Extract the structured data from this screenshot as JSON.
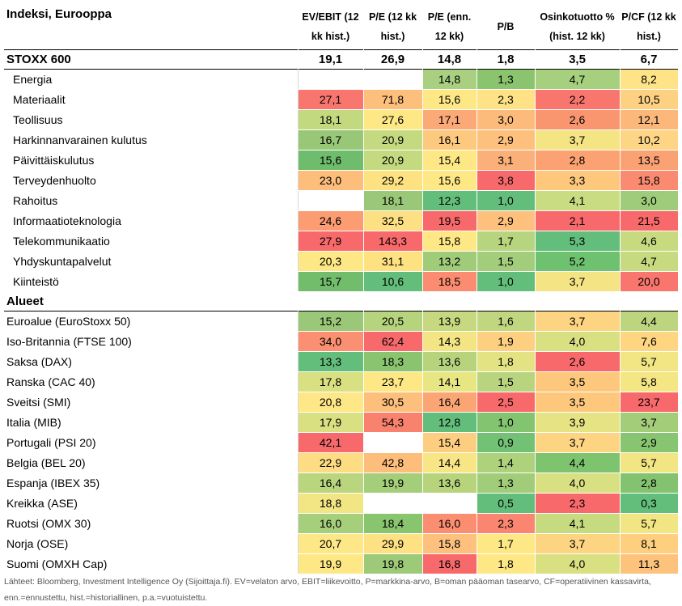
{
  "header": {
    "title": "Indeksi, Eurooppa",
    "columns": [
      "EV/EBIT (12 kk hist.)",
      "P/E (12 kk hist.)",
      "P/E (enn. 12 kk)",
      "P/B",
      "Osinkotuotto % (hist. 12 kk)",
      "P/CF (12 kk hist.)"
    ]
  },
  "groups": [
    {
      "title": "STOXX 600",
      "values": [
        "19,1",
        "26,9",
        "14,8",
        "1,8",
        "3,5",
        "6,7"
      ],
      "indent": true,
      "rows": [
        {
          "label": "Energia",
          "cells": [
            {
              "v": "",
              "c": "#ffffff"
            },
            {
              "v": "",
              "c": "#ffffff"
            },
            {
              "v": "14,8",
              "c": "#a8d080"
            },
            {
              "v": "1,3",
              "c": "#8ac46e"
            },
            {
              "v": "4,7",
              "c": "#a6cf7e"
            },
            {
              "v": "8,2",
              "c": "#fee487"
            }
          ]
        },
        {
          "label": "Materiaalit",
          "cells": [
            {
              "v": "27,1",
              "c": "#f8766d"
            },
            {
              "v": "71,8",
              "c": "#fdc07c"
            },
            {
              "v": "15,6",
              "c": "#fee885"
            },
            {
              "v": "2,3",
              "c": "#fee285"
            },
            {
              "v": "2,2",
              "c": "#f8766d"
            },
            {
              "v": "10,5",
              "c": "#fdd182"
            }
          ]
        },
        {
          "label": "Teollisuus",
          "cells": [
            {
              "v": "18,1",
              "c": "#c3d97f"
            },
            {
              "v": "27,6",
              "c": "#fee886"
            },
            {
              "v": "17,1",
              "c": "#fba976"
            },
            {
              "v": "3,0",
              "c": "#fdbb7b"
            },
            {
              "v": "2,6",
              "c": "#f9956f"
            },
            {
              "v": "12,1",
              "c": "#fcb77a"
            }
          ]
        },
        {
          "label": "Harkinnanvarainen kulutus",
          "cells": [
            {
              "v": "16,7",
              "c": "#98c877"
            },
            {
              "v": "20,9",
              "c": "#c4da80"
            },
            {
              "v": "16,1",
              "c": "#fdc97e"
            },
            {
              "v": "2,9",
              "c": "#fdc17d"
            },
            {
              "v": "3,7",
              "c": "#f5e484"
            },
            {
              "v": "10,2",
              "c": "#fdd584"
            }
          ]
        },
        {
          "label": "Päivittäiskulutus",
          "cells": [
            {
              "v": "15,6",
              "c": "#6fbd6c"
            },
            {
              "v": "20,9",
              "c": "#c4da80"
            },
            {
              "v": "15,4",
              "c": "#fee886"
            },
            {
              "v": "3,1",
              "c": "#fcb079"
            },
            {
              "v": "2,8",
              "c": "#fba172"
            },
            {
              "v": "13,5",
              "c": "#fba275"
            }
          ]
        },
        {
          "label": "Terveydenhuolto",
          "cells": [
            {
              "v": "23,0",
              "c": "#fdbd7b"
            },
            {
              "v": "29,2",
              "c": "#fee281"
            },
            {
              "v": "15,6",
              "c": "#fee885"
            },
            {
              "v": "3,8",
              "c": "#f8696b"
            },
            {
              "v": "3,3",
              "c": "#fdc77c"
            },
            {
              "v": "15,8",
              "c": "#fa8b70"
            }
          ]
        },
        {
          "label": "Rahoitus",
          "cells": [
            {
              "v": "",
              "c": "#ffffff"
            },
            {
              "v": "18,1",
              "c": "#9ac878"
            },
            {
              "v": "12,3",
              "c": "#63be7b"
            },
            {
              "v": "1,0",
              "c": "#63be7b"
            },
            {
              "v": "4,1",
              "c": "#c9dc81"
            },
            {
              "v": "3,0",
              "c": "#9fcc7a"
            }
          ]
        },
        {
          "label": "Informaatioteknologia",
          "cells": [
            {
              "v": "24,6",
              "c": "#fb9c72"
            },
            {
              "v": "32,5",
              "c": "#fee084"
            },
            {
              "v": "19,5",
              "c": "#f8696b"
            },
            {
              "v": "2,9",
              "c": "#fdc17d"
            },
            {
              "v": "2,1",
              "c": "#f8696b"
            },
            {
              "v": "21,5",
              "c": "#f8696b"
            }
          ]
        },
        {
          "label": "Telekommunikaatio",
          "cells": [
            {
              "v": "27,9",
              "c": "#f8696b"
            },
            {
              "v": "143,3",
              "c": "#f8696b"
            },
            {
              "v": "15,8",
              "c": "#fee885"
            },
            {
              "v": "1,7",
              "c": "#b6d57e"
            },
            {
              "v": "5,3",
              "c": "#63be7b"
            },
            {
              "v": "4,6",
              "c": "#c7da80"
            }
          ]
        },
        {
          "label": "Yhdyskuntapalvelut",
          "cells": [
            {
              "v": "20,3",
              "c": "#fee885"
            },
            {
              "v": "31,1",
              "c": "#fee281"
            },
            {
              "v": "13,2",
              "c": "#a0cc79"
            },
            {
              "v": "1,5",
              "c": "#a2cd7a"
            },
            {
              "v": "5,2",
              "c": "#6ec16e"
            },
            {
              "v": "4,7",
              "c": "#c7da80"
            }
          ]
        },
        {
          "label": "Kiinteistö",
          "cells": [
            {
              "v": "15,7",
              "c": "#71bd6c"
            },
            {
              "v": "10,6",
              "c": "#63be7b"
            },
            {
              "v": "18,5",
              "c": "#fb8c71"
            },
            {
              "v": "1,0",
              "c": "#63be7b"
            },
            {
              "v": "3,7",
              "c": "#f5e484"
            },
            {
              "v": "20,0",
              "c": "#f8766d"
            }
          ]
        }
      ]
    },
    {
      "title": "Alueet",
      "values": [
        "",
        "",
        "",
        "",
        "",
        ""
      ],
      "indent": false,
      "rows": [
        {
          "label": "Euroalue (EuroStoxx 50)",
          "cells": [
            {
              "v": "15,2",
              "c": "#9bc878"
            },
            {
              "v": "20,5",
              "c": "#b6d47d"
            },
            {
              "v": "13,9",
              "c": "#c6d980"
            },
            {
              "v": "1,6",
              "c": "#c0d77f"
            },
            {
              "v": "3,7",
              "c": "#fdd482"
            },
            {
              "v": "4,4",
              "c": "#bdd57e"
            }
          ]
        },
        {
          "label": "Iso-Britannia (FTSE 100)",
          "cells": [
            {
              "v": "34,0",
              "c": "#fa9071"
            },
            {
              "v": "62,4",
              "c": "#f8696b"
            },
            {
              "v": "14,3",
              "c": "#f3e584"
            },
            {
              "v": "1,9",
              "c": "#fdd081"
            },
            {
              "v": "4,0",
              "c": "#d8e082"
            },
            {
              "v": "7,6",
              "c": "#fed580"
            }
          ]
        },
        {
          "label": "Saksa (DAX)",
          "cells": [
            {
              "v": "13,3",
              "c": "#63be7b"
            },
            {
              "v": "18,3",
              "c": "#8ac46e"
            },
            {
              "v": "13,6",
              "c": "#b7d47d"
            },
            {
              "v": "1,8",
              "c": "#e4e383"
            },
            {
              "v": "2,6",
              "c": "#f8696b"
            },
            {
              "v": "5,7",
              "c": "#f2e583"
            }
          ]
        },
        {
          "label": "Ranska (CAC 40)",
          "cells": [
            {
              "v": "17,8",
              "c": "#d8e082"
            },
            {
              "v": "23,7",
              "c": "#fee885"
            },
            {
              "v": "14,1",
              "c": "#e8e583"
            },
            {
              "v": "1,5",
              "c": "#b9d47e"
            },
            {
              "v": "3,5",
              "c": "#fdc77c"
            },
            {
              "v": "5,8",
              "c": "#f5e684"
            }
          ]
        },
        {
          "label": "Sveitsi (SMI)",
          "cells": [
            {
              "v": "20,8",
              "c": "#fee786"
            },
            {
              "v": "30,5",
              "c": "#fdbf7c"
            },
            {
              "v": "16,4",
              "c": "#fba575"
            },
            {
              "v": "2,5",
              "c": "#f8696b"
            },
            {
              "v": "3,5",
              "c": "#fdc77c"
            },
            {
              "v": "23,7",
              "c": "#f8696b"
            }
          ]
        },
        {
          "label": "Italia (MIB)",
          "cells": [
            {
              "v": "17,9",
              "c": "#d8e082"
            },
            {
              "v": "54,3",
              "c": "#f9826f"
            },
            {
              "v": "12,8",
              "c": "#63be7b"
            },
            {
              "v": "1,0",
              "c": "#83c470"
            },
            {
              "v": "3,9",
              "c": "#e5e383"
            },
            {
              "v": "3,7",
              "c": "#a4cd7a"
            }
          ]
        },
        {
          "label": "Portugali (PSI 20)",
          "cells": [
            {
              "v": "42,1",
              "c": "#f8696b"
            },
            {
              "v": "",
              "c": "#ffffff"
            },
            {
              "v": "15,4",
              "c": "#fdcd80"
            },
            {
              "v": "0,9",
              "c": "#73c174"
            },
            {
              "v": "3,7",
              "c": "#fdd482"
            },
            {
              "v": "2,9",
              "c": "#88c571"
            }
          ]
        },
        {
          "label": "Belgia (BEL 20)",
          "cells": [
            {
              "v": "22,9",
              "c": "#fedc83"
            },
            {
              "v": "42,8",
              "c": "#fdbd7b"
            },
            {
              "v": "14,4",
              "c": "#f8e585"
            },
            {
              "v": "1,4",
              "c": "#aed27c"
            },
            {
              "v": "4,4",
              "c": "#7ec46f"
            },
            {
              "v": "5,7",
              "c": "#f2e583"
            }
          ]
        },
        {
          "label": "Espanja (IBEX 35)",
          "cells": [
            {
              "v": "16,4",
              "c": "#b9d57e"
            },
            {
              "v": "19,9",
              "c": "#a5ce7a"
            },
            {
              "v": "13,6",
              "c": "#b7d47d"
            },
            {
              "v": "1,3",
              "c": "#a1cc79"
            },
            {
              "v": "4,0",
              "c": "#d8e082"
            },
            {
              "v": "2,8",
              "c": "#83c370"
            }
          ]
        },
        {
          "label": "Kreikka (ASE)",
          "cells": [
            {
              "v": "18,8",
              "c": "#f2e584"
            },
            {
              "v": "",
              "c": "#ffffff"
            },
            {
              "v": "",
              "c": "#ffffff"
            },
            {
              "v": "0,5",
              "c": "#63be7b"
            },
            {
              "v": "2,3",
              "c": "#f8696b"
            },
            {
              "v": "0,3",
              "c": "#63be7b"
            }
          ]
        },
        {
          "label": "Ruotsi (OMX 30)",
          "cells": [
            {
              "v": "16,0",
              "c": "#a6cf7b"
            },
            {
              "v": "18,4",
              "c": "#89c46e"
            },
            {
              "v": "16,0",
              "c": "#fb8e71"
            },
            {
              "v": "2,3",
              "c": "#fa8570"
            },
            {
              "v": "4,1",
              "c": "#c6da80"
            },
            {
              "v": "5,7",
              "c": "#f2e583"
            }
          ]
        },
        {
          "label": "Norja (OSE)",
          "cells": [
            {
              "v": "20,7",
              "c": "#fee786"
            },
            {
              "v": "29,9",
              "c": "#fee182"
            },
            {
              "v": "15,8",
              "c": "#fdc17d"
            },
            {
              "v": "1,7",
              "c": "#fee885"
            },
            {
              "v": "3,7",
              "c": "#fdd482"
            },
            {
              "v": "8,1",
              "c": "#fdcf7f"
            }
          ]
        },
        {
          "label": "Suomi (OMXH Cap)",
          "cells": [
            {
              "v": "19,9",
              "c": "#fee885"
            },
            {
              "v": "19,8",
              "c": "#9dca78"
            },
            {
              "v": "16,8",
              "c": "#f8696b"
            },
            {
              "v": "1,8",
              "c": "#fee885"
            },
            {
              "v": "4,0",
              "c": "#d8e082"
            },
            {
              "v": "11,3",
              "c": "#fdc37d"
            }
          ]
        }
      ]
    }
  ],
  "footnote": "Lähteet: Bloomberg, Investment Intelligence Oy (Sijoittaja.fi). EV=velaton arvo, EBIT=liikevoitto, P=markkina-arvo, B=oman pääoman tasearvo, CF=operatiivinen kassavirta, enn.=ennustettu, hist.=historiallinen, p.a.=vuotuistettu."
}
